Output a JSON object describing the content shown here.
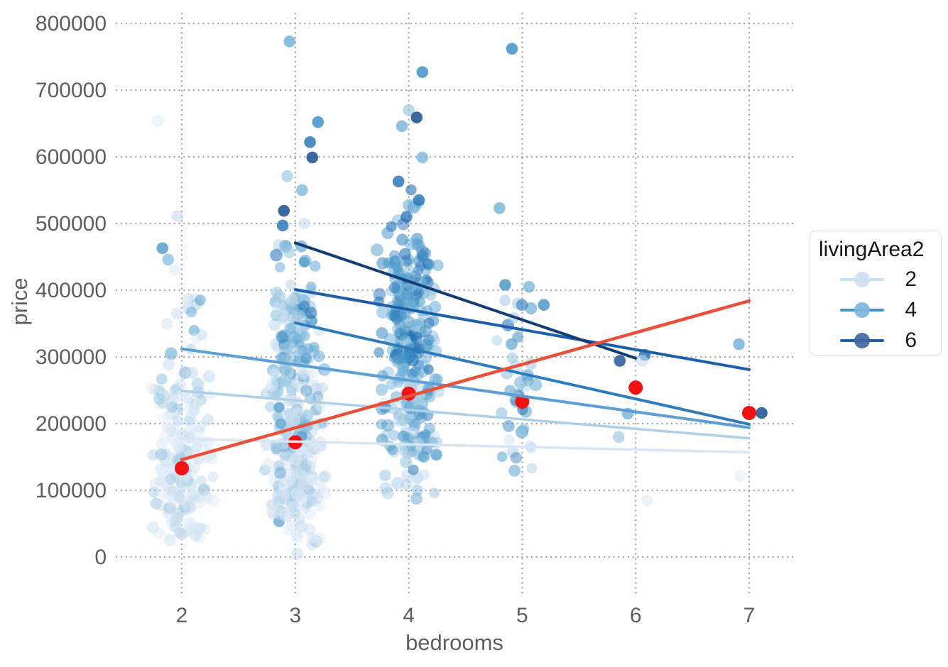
{
  "chart_data": {
    "type": "scatter",
    "title": "",
    "xlabel": "bedrooms",
    "ylabel": "price",
    "xlim": [
      1.42,
      7.4
    ],
    "ylim": [
      -60000,
      815000
    ],
    "grid": "dotted gray, on",
    "legend": {
      "title": "livingArea2",
      "position": "right",
      "entries": [
        {
          "label": "2",
          "line_color": "#c9ddf0",
          "point_color": "#cfe0f2"
        },
        {
          "label": "4",
          "line_color": "#4292c6",
          "point_color": "#7cb5dc"
        },
        {
          "label": "6",
          "line_color": "#1c5fa8",
          "point_color": "#41679f"
        }
      ]
    },
    "x_axis": {
      "title": "bedrooms",
      "ticks": [
        {
          "label": "2",
          "value": 2
        },
        {
          "label": "3",
          "value": 3
        },
        {
          "label": "4",
          "value": 4
        },
        {
          "label": "5",
          "value": 5
        },
        {
          "label": "6",
          "value": 6
        },
        {
          "label": "7",
          "value": 7
        }
      ]
    },
    "y_axis": {
      "title": "price",
      "ticks": [
        {
          "label": "0",
          "value": 0
        },
        {
          "label": "100000",
          "value": 100000
        },
        {
          "label": "200000",
          "value": 200000
        },
        {
          "label": "300000",
          "value": 300000
        },
        {
          "label": "400000",
          "value": 400000
        },
        {
          "label": "500000",
          "value": 500000
        },
        {
          "label": "600000",
          "value": 600000
        },
        {
          "label": "700000",
          "value": 700000
        },
        {
          "label": "800000",
          "value": 800000
        }
      ]
    },
    "palette": {
      "g1": "#deebf6",
      "g2": "#c6dbef",
      "g3": "#9ecae1",
      "g4": "#6baed6",
      "g5": "#4292c6",
      "g6": "#2171b5",
      "g7": "#1a4f8f"
    },
    "regression_lines": [
      {
        "group": "livingArea2=1",
        "color": "#d7e6f4",
        "width": 3.5,
        "x1": 2,
        "y1": 177000,
        "x2": 7,
        "y2": 157000
      },
      {
        "group": "livingArea2=2",
        "color": "#aecfe9",
        "width": 3.5,
        "x1": 2,
        "y1": 249000,
        "x2": 7,
        "y2": 178000
      },
      {
        "group": "livingArea2=3",
        "color": "#5d9fd3",
        "width": 4,
        "x1": 2,
        "y1": 312000,
        "x2": 7,
        "y2": 194000
      },
      {
        "group": "livingArea2=4",
        "color": "#2e7cbc",
        "width": 4,
        "x1": 3,
        "y1": 351000,
        "x2": 7,
        "y2": 199000
      },
      {
        "group": "livingArea2=5",
        "color": "#1b5fa8",
        "width": 4,
        "x1": 3,
        "y1": 401000,
        "x2": 7,
        "y2": 281000
      },
      {
        "group": "livingArea2=6",
        "color": "#123e75",
        "width": 4,
        "x1": 3,
        "y1": 471000,
        "x2": 6,
        "y2": 298000
      },
      {
        "group": "overall",
        "color": "#e8503a",
        "width": 4.5,
        "x1": 2,
        "y1": 146000,
        "x2": 7,
        "y2": 384000
      }
    ],
    "mean_points": {
      "color": "#f51111",
      "radius": 10,
      "values": [
        [
          2,
          133000
        ],
        [
          3,
          172000
        ],
        [
          4,
          245000
        ],
        [
          5,
          233000
        ],
        [
          6,
          254000
        ],
        [
          7,
          216000
        ]
      ]
    },
    "point_clusters": [
      {
        "bedrooms": 2,
        "jitter": 0.29,
        "strata": [
          {
            "n": 28,
            "price": [
              25000,
              72000
            ],
            "w": {
              "g1": 0.7,
              "g2": 0.3
            }
          },
          {
            "n": 88,
            "price": [
              72000,
              160000
            ],
            "w": {
              "g1": 0.55,
              "g2": 0.3,
              "g3": 0.15
            }
          },
          {
            "n": 58,
            "price": [
              160000,
              262000
            ],
            "w": {
              "g1": 0.45,
              "g2": 0.3,
              "g3": 0.2,
              "g4": 0.05
            }
          },
          {
            "n": 22,
            "price": [
              262000,
              392000
            ],
            "w": {
              "g1": 0.3,
              "g2": 0.28,
              "g3": 0.25,
              "g4": 0.12,
              "g5": 0.05
            }
          }
        ],
        "highlights": [
          {
            "dx": -0.21,
            "price": 654000,
            "g": "g1",
            "a": 0.55
          },
          {
            "dx": -0.04,
            "price": 511000,
            "g": "g2",
            "a": 0.6
          },
          {
            "dx": -0.17,
            "price": 463000,
            "g": "g5",
            "a": 0.75
          },
          {
            "dx": -0.12,
            "price": 446000,
            "g": "g4",
            "a": 0.6
          },
          {
            "dx": -0.06,
            "price": 430000,
            "g": "g1",
            "a": 0.6
          }
        ]
      },
      {
        "bedrooms": 3,
        "jitter": 0.29,
        "strata": [
          {
            "n": 20,
            "price": [
              18000,
              72000
            ],
            "w": {
              "g1": 0.5,
              "g2": 0.3,
              "g3": 0.15,
              "g5": 0.05
            }
          },
          {
            "n": 100,
            "price": [
              72000,
              160000
            ],
            "w": {
              "g1": 0.4,
              "g2": 0.35,
              "g3": 0.2,
              "g4": 0.05
            }
          },
          {
            "n": 118,
            "price": [
              160000,
              280000
            ],
            "w": {
              "g1": 0.15,
              "g2": 0.3,
              "g3": 0.3,
              "g4": 0.18,
              "g5": 0.07
            }
          },
          {
            "n": 80,
            "price": [
              280000,
              400000
            ],
            "w": {
              "g2": 0.15,
              "g3": 0.3,
              "g4": 0.3,
              "g5": 0.18,
              "g6": 0.07
            }
          },
          {
            "n": 12,
            "price": [
              400000,
              470000
            ],
            "w": {
              "g3": 0.3,
              "g4": 0.3,
              "g5": 0.3,
              "g6": 0.1
            }
          }
        ],
        "highlights": [
          {
            "dx": -0.05,
            "price": 773000,
            "g": "g4",
            "a": 0.8
          },
          {
            "dx": 0.2,
            "price": 652000,
            "g": "g5",
            "a": 0.85
          },
          {
            "dx": 0.13,
            "price": 622000,
            "g": "g6",
            "a": 0.8
          },
          {
            "dx": 0.15,
            "price": 599000,
            "g": "g7",
            "a": 0.85
          },
          {
            "dx": -0.07,
            "price": 571000,
            "g": "g3",
            "a": 0.7
          },
          {
            "dx": 0.06,
            "price": 550000,
            "g": "g4",
            "a": 0.7
          },
          {
            "dx": -0.1,
            "price": 519000,
            "g": "g7",
            "a": 0.85
          },
          {
            "dx": -0.11,
            "price": 497000,
            "g": "g6",
            "a": 0.8
          },
          {
            "dx": 0.08,
            "price": 500000,
            "g": "g2",
            "a": 0.6
          },
          {
            "dx": 0.02,
            "price": 5000,
            "g": "g2",
            "a": 0.55
          }
        ]
      },
      {
        "bedrooms": 4,
        "jitter": 0.29,
        "strata": [
          {
            "n": 14,
            "price": [
              85000,
              150000
            ],
            "w": {
              "g2": 0.3,
              "g3": 0.4,
              "g4": 0.2,
              "g6": 0.1
            }
          },
          {
            "n": 108,
            "price": [
              150000,
              280000
            ],
            "w": {
              "g2": 0.15,
              "g3": 0.3,
              "g4": 0.3,
              "g5": 0.2,
              "g6": 0.05
            }
          },
          {
            "n": 128,
            "price": [
              280000,
              420000
            ],
            "w": {
              "g3": 0.15,
              "g4": 0.3,
              "g5": 0.35,
              "g6": 0.2
            }
          },
          {
            "n": 34,
            "price": [
              420000,
              478000
            ],
            "w": {
              "g4": 0.25,
              "g5": 0.4,
              "g6": 0.35
            }
          },
          {
            "n": 8,
            "price": [
              478000,
              560000
            ],
            "w": {
              "g4": 0.2,
              "g5": 0.4,
              "g6": 0.4
            }
          }
        ],
        "highlights": [
          {
            "dx": 0.12,
            "price": 727000,
            "g": "g5",
            "a": 0.85
          },
          {
            "dx": 0.0,
            "price": 670000,
            "g": "g3",
            "a": 0.7
          },
          {
            "dx": 0.07,
            "price": 659000,
            "g": "g7",
            "a": 0.85
          },
          {
            "dx": -0.06,
            "price": 646000,
            "g": "g4",
            "a": 0.75
          },
          {
            "dx": 0.12,
            "price": 599000,
            "g": "g4",
            "a": 0.7
          },
          {
            "dx": -0.09,
            "price": 563000,
            "g": "g6",
            "a": 0.8
          },
          {
            "dx": 0.09,
            "price": 535000,
            "g": "g6",
            "a": 0.8
          },
          {
            "dx": -0.02,
            "price": 510000,
            "g": "g6",
            "a": 0.75
          }
        ]
      },
      {
        "bedrooms": 5,
        "jitter": 0.24,
        "strata": [
          {
            "n": 8,
            "price": [
              128000,
              185000
            ],
            "w": {
              "g2": 0.3,
              "g3": 0.3,
              "g4": 0.2,
              "g6": 0.2
            }
          },
          {
            "n": 22,
            "price": [
              185000,
              280000
            ],
            "w": {
              "g3": 0.25,
              "g4": 0.35,
              "g5": 0.3,
              "g6": 0.1
            }
          },
          {
            "n": 12,
            "price": [
              280000,
              385000
            ],
            "w": {
              "g3": 0.2,
              "g4": 0.4,
              "g5": 0.3,
              "g6": 0.1
            }
          }
        ],
        "highlights": [
          {
            "dx": -0.09,
            "price": 762000,
            "g": "g5",
            "a": 0.85
          },
          {
            "dx": -0.2,
            "price": 523000,
            "g": "g4",
            "a": 0.75
          },
          {
            "dx": -0.15,
            "price": 408000,
            "g": "g5",
            "a": 0.8
          },
          {
            "dx": 0.06,
            "price": 405000,
            "g": "g4",
            "a": 0.7
          },
          {
            "dx": 0.19,
            "price": 378000,
            "g": "g5",
            "a": 0.8
          }
        ]
      },
      {
        "bedrooms": 6,
        "jitter": 0.15,
        "strata": [],
        "highlights": [
          {
            "dx": 0.08,
            "price": 303000,
            "g": "g6",
            "a": 0.8
          },
          {
            "dx": -0.14,
            "price": 294000,
            "g": "g7",
            "a": 0.8
          },
          {
            "dx": 0.06,
            "price": 294000,
            "g": "g2",
            "a": 0.6
          },
          {
            "dx": -0.07,
            "price": 215000,
            "g": "g4",
            "a": 0.75
          },
          {
            "dx": -0.15,
            "price": 180000,
            "g": "g3",
            "a": 0.7
          },
          {
            "dx": 0.1,
            "price": 85000,
            "g": "g1",
            "a": 0.6
          }
        ]
      },
      {
        "bedrooms": 7,
        "jitter": 0.12,
        "strata": [],
        "highlights": [
          {
            "dx": -0.09,
            "price": 319000,
            "g": "g4",
            "a": 0.8
          },
          {
            "dx": 0.11,
            "price": 216000,
            "g": "g7",
            "a": 0.85
          },
          {
            "dx": -0.08,
            "price": 122000,
            "g": "g1",
            "a": 0.55
          }
        ]
      }
    ]
  }
}
